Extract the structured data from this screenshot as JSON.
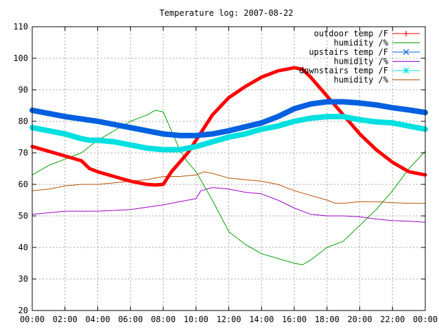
{
  "chart_data": {
    "type": "line",
    "title": "Temperature log: 2007-08-22",
    "xlabel": "",
    "ylabel": "",
    "xlim": [
      0,
      24
    ],
    "ylim": [
      20,
      110
    ],
    "x_ticks": [
      0,
      2,
      4,
      6,
      8,
      10,
      12,
      14,
      16,
      18,
      20,
      22,
      24
    ],
    "x_tick_labels": [
      "00:00",
      "02:00",
      "04:00",
      "06:00",
      "08:00",
      "10:00",
      "12:00",
      "14:00",
      "16:00",
      "18:00",
      "20:00",
      "22:00",
      "00:00"
    ],
    "y_ticks": [
      20,
      30,
      40,
      50,
      60,
      70,
      80,
      90,
      100,
      110
    ],
    "y_tick_labels": [
      "20",
      "30",
      "40",
      "50",
      "60",
      "70",
      "80",
      "90",
      "100",
      "110"
    ],
    "grid": true,
    "legend_position": "top-right",
    "series": [
      {
        "name": "outdoor temp /F",
        "color": "#ff0000",
        "marker": "plus",
        "stroke_width": 5,
        "x": [
          0,
          1,
          2,
          3,
          3.5,
          4,
          5,
          6,
          7,
          7.5,
          8,
          8.5,
          9,
          9.5,
          10,
          11,
          12,
          13,
          14,
          15,
          16,
          16.5,
          17,
          18,
          19,
          20,
          21,
          22,
          23,
          24
        ],
        "y": [
          72,
          70.5,
          69,
          67.5,
          65,
          64,
          62.5,
          61,
          60,
          59.8,
          60,
          64,
          67,
          70,
          74,
          82,
          87.5,
          91,
          94,
          96,
          97,
          96.5,
          94,
          88,
          82,
          76,
          71,
          67,
          64,
          63
        ]
      },
      {
        "name": "humidity /%",
        "color": "#00a000",
        "x": [
          0,
          1,
          2,
          3,
          4,
          5,
          6,
          7,
          7.5,
          8,
          8.5,
          9,
          9.5,
          10,
          11,
          12,
          13,
          14,
          15,
          16,
          16.5,
          17,
          18,
          19,
          20,
          21,
          22,
          23,
          24
        ],
        "y": [
          63,
          66,
          68,
          70,
          74,
          77,
          80,
          82,
          83.5,
          83,
          77,
          71,
          67,
          64,
          55,
          45,
          41,
          38,
          36.5,
          35,
          34.5,
          36,
          40,
          42,
          47,
          52,
          58,
          65,
          70.5
        ]
      },
      {
        "name": "upstairs temp /F",
        "color": "#0060e0",
        "marker": "cross",
        "stroke_width": 8,
        "x": [
          0,
          2,
          4,
          6,
          8,
          9,
          10,
          11,
          12,
          14,
          15,
          16,
          17,
          18,
          19,
          20,
          21,
          22,
          23,
          24
        ],
        "y": [
          83.5,
          81.5,
          80,
          78,
          76,
          75.5,
          75.5,
          76,
          77,
          79.5,
          81.5,
          84,
          85.5,
          86.2,
          86.2,
          85.8,
          85.2,
          84.3,
          83.6,
          82.8
        ]
      },
      {
        "name": "humidity /%",
        "color": "#9900cc",
        "x": [
          0,
          2,
          4,
          6,
          8,
          9,
          10,
          10.3,
          11,
          12,
          13,
          14,
          15,
          16,
          17,
          18,
          19,
          20,
          21,
          22,
          23,
          24
        ],
        "y": [
          50.5,
          51.5,
          51.5,
          52,
          53.5,
          54.5,
          55.5,
          58,
          59,
          58.5,
          57.5,
          57,
          55,
          52.5,
          50.5,
          50,
          50,
          49.7,
          49,
          48.5,
          48.3,
          48
        ]
      },
      {
        "name": "downstairs temp /F",
        "color": "#00e0e0",
        "marker": "star",
        "stroke_width": 8,
        "x": [
          0,
          1,
          2,
          3,
          3.5,
          4,
          5,
          6,
          7,
          8,
          9,
          10,
          11,
          12,
          13,
          14,
          15,
          16,
          17,
          18,
          19,
          20,
          21,
          22,
          23,
          24
        ],
        "y": [
          78,
          77,
          76,
          74.5,
          74,
          74,
          73.5,
          72.5,
          71.5,
          71,
          71,
          72,
          73.5,
          75,
          76,
          77.5,
          78.5,
          80,
          81,
          81.5,
          81.5,
          80.5,
          79.8,
          79.5,
          78.5,
          77.5
        ]
      },
      {
        "name": "humidity /%",
        "color": "#b85000",
        "x": [
          0,
          1,
          2,
          3,
          4,
          5,
          6,
          7,
          8,
          9,
          10,
          10.5,
          11,
          12,
          13,
          14,
          15,
          16,
          17,
          18,
          18.5,
          19,
          20,
          21,
          22,
          23,
          24
        ],
        "y": [
          58,
          58.5,
          59.5,
          60,
          60,
          60.5,
          61,
          61.5,
          62.5,
          62.5,
          63,
          64,
          63.5,
          62,
          61.5,
          61,
          60,
          58,
          56.5,
          55,
          54,
          54,
          54.5,
          54.5,
          54.2,
          54,
          54
        ]
      }
    ]
  }
}
